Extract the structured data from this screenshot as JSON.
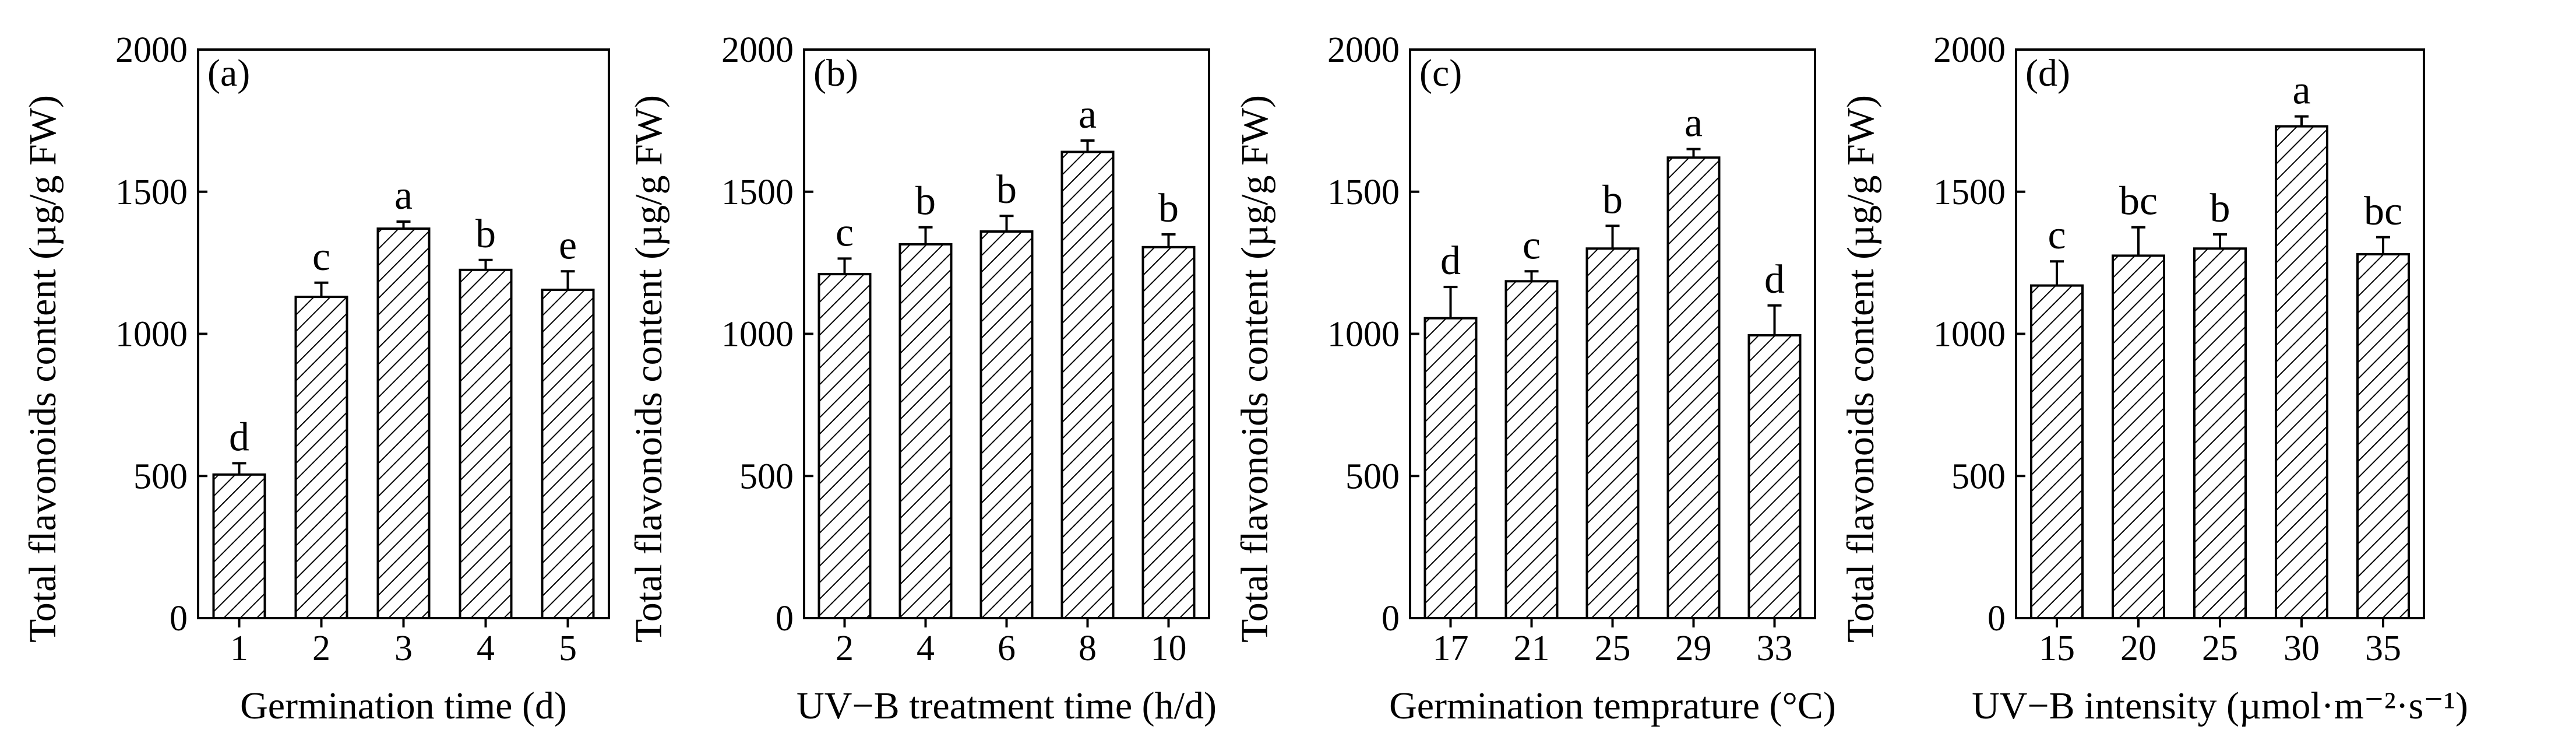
{
  "chart_data": [
    {
      "type": "bar",
      "panel_label": "(a)",
      "title": "",
      "ylabel": "Total flavonoids content (µg/g FW)",
      "xlabel": "Germination time (d)",
      "categories": [
        "1",
        "2",
        "3",
        "4",
        "5"
      ],
      "values": [
        505,
        1130,
        1370,
        1225,
        1155
      ],
      "errors": [
        40,
        50,
        25,
        35,
        65
      ],
      "significance": [
        "d",
        "c",
        "a",
        "b",
        "e"
      ],
      "ylim": [
        0,
        2000
      ],
      "yticks": [
        "0",
        "500",
        "1000",
        "1500",
        "2000"
      ],
      "bar_pattern": "diagonal-hatch"
    },
    {
      "type": "bar",
      "panel_label": "(b)",
      "title": "",
      "ylabel": "Total flavonoids content (µg/g FW)",
      "xlabel": "UV−B treatment time (h/d)",
      "categories": [
        "2",
        "4",
        "6",
        "8",
        "10"
      ],
      "values": [
        1210,
        1315,
        1360,
        1640,
        1305
      ],
      "errors": [
        55,
        60,
        55,
        40,
        45
      ],
      "significance": [
        "c",
        "b",
        "b",
        "a",
        "b"
      ],
      "ylim": [
        0,
        2000
      ],
      "yticks": [
        "0",
        "500",
        "1000",
        "1500",
        "2000"
      ],
      "bar_pattern": "diagonal-hatch"
    },
    {
      "type": "bar",
      "panel_label": "(c)",
      "title": "",
      "ylabel": "Total flavonoids content (µg/g FW)",
      "xlabel": "Germination temprature (°C)",
      "categories": [
        "17",
        "21",
        "25",
        "29",
        "33"
      ],
      "values": [
        1055,
        1185,
        1300,
        1620,
        995
      ],
      "errors": [
        110,
        35,
        80,
        30,
        105
      ],
      "significance": [
        "d",
        "c",
        "b",
        "a",
        "d"
      ],
      "ylim": [
        0,
        2000
      ],
      "yticks": [
        "0",
        "500",
        "1000",
        "1500",
        "2000"
      ],
      "bar_pattern": "diagonal-hatch"
    },
    {
      "type": "bar",
      "panel_label": "(d)",
      "title": "",
      "ylabel": "Total flavonoids content (µg/g FW)",
      "xlabel": "UV−B intensity (µmol·m⁻²·s⁻¹)",
      "categories": [
        "15",
        "20",
        "25",
        "30",
        "35"
      ],
      "values": [
        1170,
        1275,
        1300,
        1730,
        1280
      ],
      "errors": [
        85,
        100,
        50,
        35,
        60
      ],
      "significance": [
        "c",
        "bc",
        "b",
        "a",
        "bc"
      ],
      "ylim": [
        0,
        2000
      ],
      "yticks": [
        "0",
        "500",
        "1000",
        "1500",
        "2000"
      ],
      "bar_pattern": "diagonal-hatch"
    }
  ]
}
